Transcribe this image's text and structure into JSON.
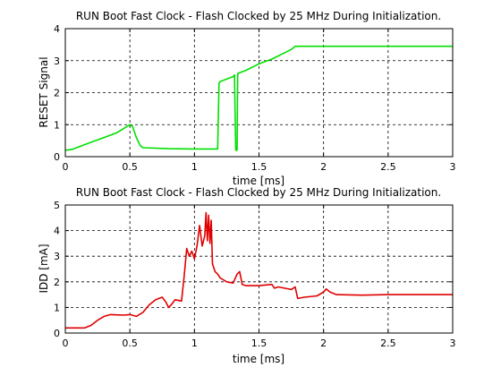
{
  "chart_data": [
    {
      "type": "line",
      "title": "RUN Boot Fast Clock - Flash Clocked by 25 MHz During Initialization.",
      "xlabel": "time [ms]",
      "ylabel": "RESET Signal",
      "xlim": [
        0,
        3
      ],
      "ylim": [
        0,
        4
      ],
      "xticks": [
        "0",
        "0.5",
        "1",
        "1.5",
        "2",
        "2.5",
        "3"
      ],
      "yticks": [
        "0",
        "1",
        "2",
        "3",
        "4"
      ],
      "grid": true,
      "color": "#00e000",
      "series": [
        {
          "x": [
            0,
            0.05,
            0.1,
            0.2,
            0.3,
            0.4,
            0.46,
            0.5,
            0.52,
            0.55,
            0.58,
            0.6,
            0.8,
            1.0,
            1.18,
            1.19,
            1.2,
            1.3,
            1.31,
            1.32,
            1.33,
            1.335,
            1.34,
            1.345,
            1.35,
            1.4,
            1.5,
            1.6,
            1.7,
            1.75,
            1.78,
            2.0,
            2.5,
            3.0
          ],
          "y": [
            0.2,
            0.22,
            0.3,
            0.45,
            0.6,
            0.75,
            0.9,
            1.0,
            0.95,
            0.6,
            0.35,
            0.28,
            0.25,
            0.24,
            0.24,
            2.3,
            2.35,
            2.5,
            2.55,
            0.2,
            0.2,
            2.6,
            2.6,
            2.62,
            2.62,
            2.7,
            2.9,
            3.05,
            3.25,
            3.35,
            3.45,
            3.45,
            3.45,
            3.45
          ]
        }
      ]
    },
    {
      "type": "line",
      "title": "RUN Boot Fast Clock - Flash Clocked by 25 MHz During Initialization.",
      "xlabel": "time [ms]",
      "ylabel": "IDD [mA]",
      "xlim": [
        0,
        3
      ],
      "ylim": [
        0,
        5
      ],
      "xticks": [
        "0",
        "0.5",
        "1",
        "1.5",
        "2",
        "2.5",
        "3"
      ],
      "yticks": [
        "0",
        "1",
        "2",
        "3",
        "4",
        "5"
      ],
      "grid": true,
      "color": "#e00000",
      "series": [
        {
          "x": [
            0,
            0.15,
            0.2,
            0.25,
            0.3,
            0.35,
            0.45,
            0.5,
            0.55,
            0.6,
            0.65,
            0.7,
            0.75,
            0.78,
            0.8,
            0.82,
            0.85,
            0.9,
            0.92,
            0.94,
            0.96,
            0.98,
            1.0,
            1.02,
            1.04,
            1.06,
            1.08,
            1.09,
            1.1,
            1.11,
            1.12,
            1.13,
            1.14,
            1.16,
            1.18,
            1.2,
            1.25,
            1.3,
            1.33,
            1.35,
            1.37,
            1.4,
            1.5,
            1.6,
            1.62,
            1.65,
            1.75,
            1.78,
            1.8,
            1.85,
            1.95,
            2.0,
            2.02,
            2.05,
            2.1,
            2.3,
            2.5,
            2.8,
            3.0
          ],
          "y": [
            0.2,
            0.2,
            0.3,
            0.5,
            0.65,
            0.72,
            0.7,
            0.72,
            0.65,
            0.8,
            1.1,
            1.3,
            1.4,
            1.2,
            1.0,
            1.1,
            1.3,
            1.25,
            2.2,
            3.3,
            3.0,
            3.2,
            2.9,
            3.4,
            4.2,
            3.4,
            3.8,
            4.7,
            3.6,
            4.6,
            3.5,
            4.4,
            2.7,
            2.4,
            2.3,
            2.15,
            2.0,
            1.95,
            2.3,
            2.4,
            1.9,
            1.85,
            1.85,
            1.9,
            1.75,
            1.8,
            1.7,
            1.8,
            1.35,
            1.4,
            1.45,
            1.6,
            1.72,
            1.6,
            1.5,
            1.48,
            1.5,
            1.5,
            1.5
          ]
        }
      ]
    }
  ]
}
